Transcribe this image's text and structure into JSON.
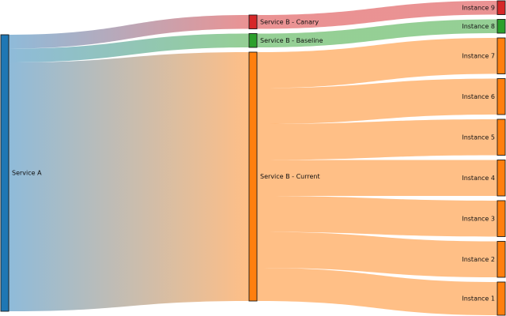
{
  "nodes": [
    {
      "id": "A",
      "label": "Service A",
      "color": "#1f77b4"
    },
    {
      "id": "BC",
      "label": "Service B - Canary",
      "color": "#d62728"
    },
    {
      "id": "BB",
      "label": "Service B - Baseline",
      "color": "#2ca02c"
    },
    {
      "id": "BU",
      "label": "Service B - Current",
      "color": "#ff7f0e"
    },
    {
      "id": "I9",
      "label": "Instance 9",
      "color": "#d62728"
    },
    {
      "id": "I8",
      "label": "Instance 8",
      "color": "#2ca02c"
    },
    {
      "id": "I7",
      "label": "Instance 7",
      "color": "#ff7f0e"
    },
    {
      "id": "I6",
      "label": "Instance 6",
      "color": "#ff7f0e"
    },
    {
      "id": "I5",
      "label": "Instance 5",
      "color": "#ff7f0e"
    },
    {
      "id": "I4",
      "label": "Instance 4",
      "color": "#ff7f0e"
    },
    {
      "id": "I3",
      "label": "Instance 3",
      "color": "#ff7f0e"
    },
    {
      "id": "I2",
      "label": "Instance 2",
      "color": "#ff7f0e"
    },
    {
      "id": "I1",
      "label": "Instance 1",
      "color": "#ff7f0e"
    }
  ],
  "links": [
    {
      "source": "A",
      "target": "BC",
      "value": 5
    },
    {
      "source": "A",
      "target": "BB",
      "value": 5
    },
    {
      "source": "A",
      "target": "BU",
      "value": 90
    },
    {
      "source": "BC",
      "target": "I9",
      "value": 5
    },
    {
      "source": "BB",
      "target": "I8",
      "value": 5
    },
    {
      "source": "BU",
      "target": "I7",
      "value": 13
    },
    {
      "source": "BU",
      "target": "I6",
      "value": 13
    },
    {
      "source": "BU",
      "target": "I5",
      "value": 13
    },
    {
      "source": "BU",
      "target": "I4",
      "value": 13
    },
    {
      "source": "BU",
      "target": "I3",
      "value": 13
    },
    {
      "source": "BU",
      "target": "I2",
      "value": 13
    },
    {
      "source": "BU",
      "target": "I1",
      "value": 12
    }
  ]
}
